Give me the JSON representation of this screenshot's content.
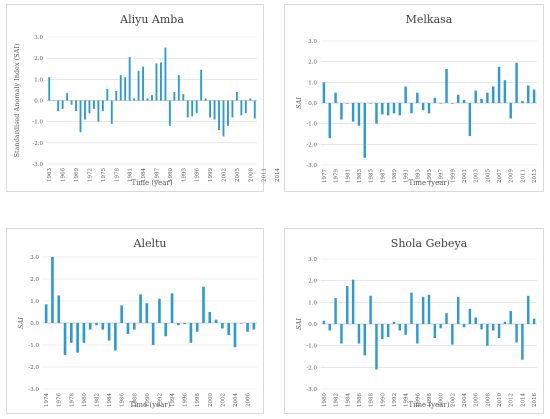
{
  "chart_data": [
    {
      "type": "bar",
      "title": "Aliyu Amba",
      "ylabel": "Standardised Anomaly Index (SAI)",
      "xlabel": "Time (year)",
      "ylim": [
        -3.0,
        3.0
      ],
      "yticks": [
        "3.0",
        "2.0",
        "1.0",
        "0.0",
        "-1.0",
        "-2.0",
        "-3.0"
      ],
      "grid": true,
      "start_year": 1963,
      "xtick_labels": [
        "1963",
        "1966",
        "1969",
        "1972",
        "1975",
        "1978",
        "1981",
        "1984",
        "1987",
        "1990",
        "1993",
        "1996",
        "1999",
        "2002",
        "2005",
        "2008",
        "2011",
        "2014"
      ],
      "values": [
        1.1,
        0.0,
        -0.5,
        -0.4,
        0.35,
        -0.2,
        -0.5,
        -1.5,
        -0.9,
        -0.6,
        -0.4,
        -1.0,
        -0.5,
        0.55,
        -1.1,
        0.45,
        1.2,
        1.1,
        2.05,
        0.1,
        1.4,
        1.6,
        0.1,
        0.25,
        1.75,
        1.8,
        2.5,
        -1.2,
        0.4,
        1.2,
        0.3,
        -0.8,
        -0.75,
        -0.6,
        1.45,
        0.1,
        -0.8,
        -0.9,
        -1.4,
        -1.7,
        -1.2,
        -0.8,
        0.4,
        -0.7,
        -0.6,
        0.1,
        -0.85
      ]
    },
    {
      "type": "bar",
      "title": "Melkasa",
      "ylabel": "SAI",
      "xlabel": "Time (year)",
      "ylim": [
        -3.0,
        3.0
      ],
      "yticks": [
        "3.0",
        "2.0",
        "1.0",
        "0.0",
        "-1.0",
        "-2.0",
        "-3.0"
      ],
      "grid": true,
      "start_year": 1977,
      "xtick_labels": [
        "1977",
        "1979",
        "1981",
        "1983",
        "1985",
        "1987",
        "1989",
        "1991",
        "1993",
        "1995",
        "1997",
        "1999",
        "2001",
        "2003",
        "2005",
        "2007",
        "2009",
        "2011",
        "2013"
      ],
      "values": [
        1.0,
        -1.7,
        0.5,
        -0.8,
        0.0,
        -0.9,
        -1.1,
        -2.65,
        0.0,
        -1.0,
        -0.55,
        -0.6,
        -0.5,
        -0.6,
        0.8,
        -0.5,
        0.5,
        -0.35,
        -0.5,
        0.25,
        0.0,
        1.65,
        0.0,
        0.4,
        0.15,
        -1.6,
        0.6,
        0.2,
        0.5,
        0.8,
        1.75,
        1.1,
        -0.75,
        1.95,
        0.1,
        0.85,
        0.65
      ]
    },
    {
      "type": "bar",
      "title": "Aleltu",
      "ylabel": "SAI",
      "xlabel": "Time (year)",
      "ylim": [
        -3.0,
        3.0
      ],
      "yticks": [
        "3.0",
        "2.0",
        "1.0",
        "0.0",
        "-1.0",
        "-2.0",
        "-3.0"
      ],
      "grid": true,
      "start_year": 1974,
      "xtick_labels": [
        "1974",
        "1976",
        "1978",
        "1980",
        "1982",
        "1984",
        "1986",
        "1988",
        "1990",
        "1992",
        "1994",
        "1996",
        "1998",
        "2000",
        "2002",
        "2004",
        "2006"
      ],
      "values": [
        0.85,
        3.0,
        1.25,
        -1.45,
        -0.9,
        -1.35,
        -0.9,
        -0.3,
        -0.1,
        -0.3,
        -0.8,
        -1.25,
        0.8,
        -0.5,
        -0.3,
        1.3,
        0.9,
        -1.0,
        1.1,
        -0.6,
        1.35,
        -0.1,
        -0.05,
        -0.9,
        -0.4,
        1.65,
        0.5,
        0.15,
        -0.25,
        -0.55,
        -1.1,
        0.0,
        -0.4,
        -0.3
      ]
    },
    {
      "type": "bar",
      "title": "Shola Gebeya",
      "ylabel": "SAI",
      "xlabel": "Time (year)",
      "ylim": [
        -3.0,
        3.0
      ],
      "yticks": [
        "3.0",
        "2.0",
        "1.0",
        "0.0",
        "-1.0",
        "-2.0",
        "-3.0"
      ],
      "grid": true,
      "start_year": 1980,
      "xtick_labels": [
        "1980",
        "1982",
        "1984",
        "1986",
        "1988",
        "1990",
        "1992",
        "1994",
        "1996",
        "1998",
        "2000",
        "2002",
        "2004",
        "2006",
        "2008",
        "2010",
        "2012",
        "2014",
        "2016"
      ],
      "values": [
        0.15,
        -0.3,
        1.2,
        -0.9,
        1.75,
        2.05,
        -0.9,
        -1.45,
        1.3,
        -2.1,
        -0.7,
        -0.6,
        0.1,
        -0.3,
        -0.5,
        1.45,
        -0.9,
        1.25,
        1.35,
        -0.65,
        -0.2,
        0.5,
        -0.95,
        1.25,
        -0.15,
        0.7,
        0.3,
        -0.25,
        -1.0,
        -0.3,
        -0.65,
        0.1,
        0.6,
        -0.85,
        -1.65,
        1.3,
        0.25
      ]
    }
  ]
}
